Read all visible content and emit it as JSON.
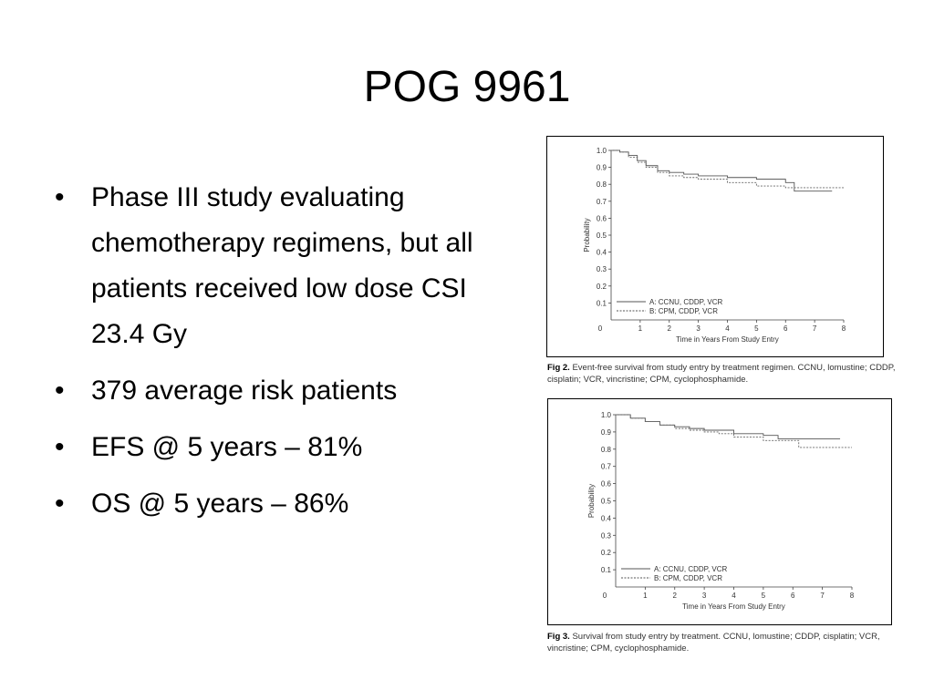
{
  "slide": {
    "title": "POG 9961",
    "bullets": [
      "Phase III study evaluating chemotherapy regimens, but all patients received low dose CSI 23.4 Gy",
      "379 average risk patients",
      "EFS @ 5 years – 81%",
      "OS @ 5 years – 86%"
    ]
  },
  "chart_data": [
    {
      "type": "line",
      "title": "",
      "xlabel": "Time in Years From Study Entry",
      "ylabel": "Probability",
      "xlim": [
        0,
        8
      ],
      "ylim": [
        0,
        1.0
      ],
      "x_ticks": [
        "0",
        "1",
        "2",
        "3",
        "4",
        "5",
        "6",
        "7",
        "8"
      ],
      "y_ticks": [
        "0.1",
        "0.2",
        "0.3",
        "0.4",
        "0.5",
        "0.6",
        "0.7",
        "0.8",
        "0.9",
        "1.0"
      ],
      "legend": "bottom-left",
      "series": [
        {
          "name": "A: CCNU, CDDP, VCR",
          "style": "solid",
          "x": [
            0,
            0.3,
            0.6,
            0.9,
            1.2,
            1.6,
            2.0,
            2.5,
            3.0,
            4.0,
            5.0,
            6.0,
            6.3,
            7.6
          ],
          "y": [
            1.0,
            0.99,
            0.97,
            0.94,
            0.91,
            0.88,
            0.87,
            0.86,
            0.85,
            0.84,
            0.83,
            0.81,
            0.76,
            0.76
          ]
        },
        {
          "name": "B: CPM, CDDP, VCR",
          "style": "dashed",
          "x": [
            0,
            0.3,
            0.6,
            0.9,
            1.2,
            1.6,
            2.0,
            2.5,
            3.0,
            4.0,
            5.0,
            6.0,
            6.5,
            8.0
          ],
          "y": [
            1.0,
            0.99,
            0.96,
            0.93,
            0.9,
            0.87,
            0.85,
            0.84,
            0.83,
            0.81,
            0.79,
            0.78,
            0.78,
            0.78
          ]
        }
      ],
      "caption_label": "Fig 2.",
      "caption_text": "Event-free survival from study entry by treatment regimen. CCNU, lomustine; CDDP, cisplatin; VCR, vincristine; CPM, cyclophosphamide."
    },
    {
      "type": "line",
      "title": "",
      "xlabel": "Time in Years From Study Entry",
      "ylabel": "Probability",
      "xlim": [
        0,
        8
      ],
      "ylim": [
        0,
        1.0
      ],
      "x_ticks": [
        "0",
        "1",
        "2",
        "3",
        "4",
        "5",
        "6",
        "7",
        "8"
      ],
      "y_ticks": [
        "0.1",
        "0.2",
        "0.3",
        "0.4",
        "0.5",
        "0.6",
        "0.7",
        "0.8",
        "0.9",
        "1.0"
      ],
      "legend": "bottom-left",
      "series": [
        {
          "name": "A: CCNU, CDDP, VCR",
          "style": "solid",
          "x": [
            0,
            0.5,
            1.0,
            1.5,
            2.0,
            2.5,
            3.0,
            4.0,
            5.0,
            5.5,
            7.6
          ],
          "y": [
            1.0,
            0.98,
            0.96,
            0.94,
            0.93,
            0.92,
            0.91,
            0.89,
            0.88,
            0.86,
            0.86
          ]
        },
        {
          "name": "B: CPM, CDDP, VCR",
          "style": "dashed",
          "x": [
            0,
            0.5,
            1.0,
            1.5,
            2.0,
            2.5,
            3.0,
            3.5,
            4.0,
            5.0,
            6.0,
            6.2,
            8.0
          ],
          "y": [
            1.0,
            0.98,
            0.96,
            0.94,
            0.92,
            0.91,
            0.9,
            0.89,
            0.87,
            0.85,
            0.85,
            0.81,
            0.81
          ]
        }
      ],
      "caption_label": "Fig 3.",
      "caption_text": "Survival from study entry by treatment. CCNU, lomustine; CDDP, cisplatin; VCR, vincristine; CPM, cyclophosphamide."
    }
  ]
}
